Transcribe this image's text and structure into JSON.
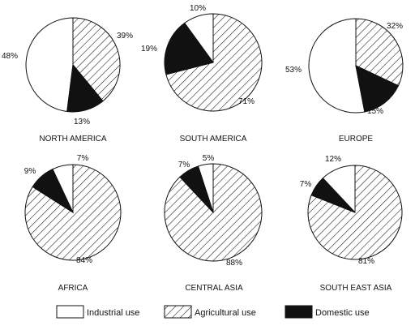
{
  "legend": {
    "position": "bottom",
    "items": [
      {
        "key": "industrial",
        "label": "Industrial use",
        "fill": "white"
      },
      {
        "key": "agricultural",
        "label": "Agricultural use",
        "fill": "hatched"
      },
      {
        "key": "domestic",
        "label": "Domestic use",
        "fill": "black"
      }
    ]
  },
  "colors": {
    "ink": "#111111",
    "background": "#ffffff"
  },
  "chart_data": [
    {
      "type": "pie",
      "title": "NORTH AMERICA",
      "series": [
        {
          "name": "Industrial use",
          "value": 48,
          "label": "48%"
        },
        {
          "name": "Agricultural use",
          "value": 39,
          "label": "39%"
        },
        {
          "name": "Domestic use",
          "value": 13,
          "label": "13%"
        }
      ]
    },
    {
      "type": "pie",
      "title": "SOUTH AMERICA",
      "series": [
        {
          "name": "Industrial use",
          "value": 10,
          "label": "10%"
        },
        {
          "name": "Agricultural use",
          "value": 71,
          "label": "71%"
        },
        {
          "name": "Domestic use",
          "value": 19,
          "label": "19%"
        }
      ]
    },
    {
      "type": "pie",
      "title": "EUROPE",
      "series": [
        {
          "name": "Industrial use",
          "value": 53,
          "label": "53%"
        },
        {
          "name": "Agricultural use",
          "value": 32,
          "label": "32%"
        },
        {
          "name": "Domestic use",
          "value": 15,
          "label": "15%"
        }
      ]
    },
    {
      "type": "pie",
      "title": "AFRICA",
      "series": [
        {
          "name": "Industrial use",
          "value": 7,
          "label": "7%"
        },
        {
          "name": "Agricultural use",
          "value": 84,
          "label": "84%"
        },
        {
          "name": "Domestic use",
          "value": 9,
          "label": "9%"
        }
      ]
    },
    {
      "type": "pie",
      "title": "CENTRAL ASIA",
      "series": [
        {
          "name": "Industrial use",
          "value": 5,
          "label": "5%"
        },
        {
          "name": "Agricultural use",
          "value": 88,
          "label": "88%"
        },
        {
          "name": "Domestic use",
          "value": 7,
          "label": "7%"
        }
      ]
    },
    {
      "type": "pie",
      "title": "SOUTH EAST ASIA",
      "series": [
        {
          "name": "Industrial use",
          "value": 12,
          "label": "12%"
        },
        {
          "name": "Agricultural use",
          "value": 81,
          "label": "81%"
        },
        {
          "name": "Domestic use",
          "value": 7,
          "label": "7%"
        }
      ]
    }
  ]
}
